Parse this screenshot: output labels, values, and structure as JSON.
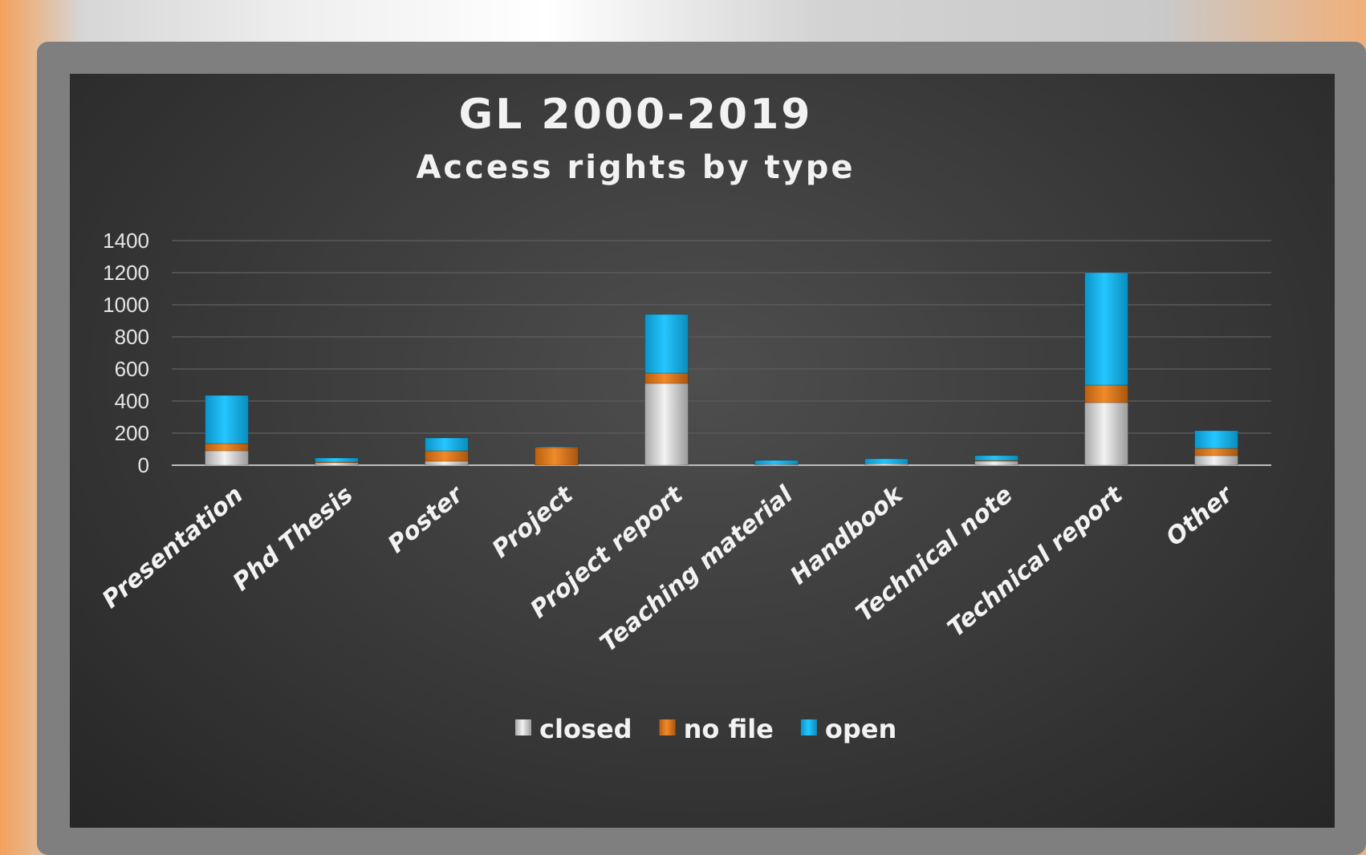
{
  "chart_data": {
    "type": "bar",
    "stacked": true,
    "title": "GL 2000-2019",
    "subtitle": "Access rights by type",
    "xlabel": "",
    "ylabel": "",
    "ylim": [
      0,
      1400
    ],
    "yticks": [
      0,
      200,
      400,
      600,
      800,
      1000,
      1200,
      1400
    ],
    "grid": true,
    "legend_position": "bottom",
    "categories": [
      "Presentation",
      "Phd Thesis",
      "Poster",
      "Project",
      "Project report",
      "Teaching material",
      "Handbook",
      "Technical note",
      "Technical report",
      "Other"
    ],
    "series": [
      {
        "name": "closed",
        "color": "#d9d9d9",
        "values": [
          90,
          15,
          25,
          0,
          510,
          5,
          10,
          25,
          390,
          60
        ]
      },
      {
        "name": "no file",
        "color": "#e07818",
        "values": [
          45,
          5,
          65,
          110,
          65,
          0,
          0,
          5,
          110,
          45
        ]
      },
      {
        "name": "open",
        "color": "#13b7ef",
        "values": [
          300,
          25,
          80,
          5,
          365,
          25,
          30,
          30,
          700,
          110
        ]
      }
    ]
  }
}
